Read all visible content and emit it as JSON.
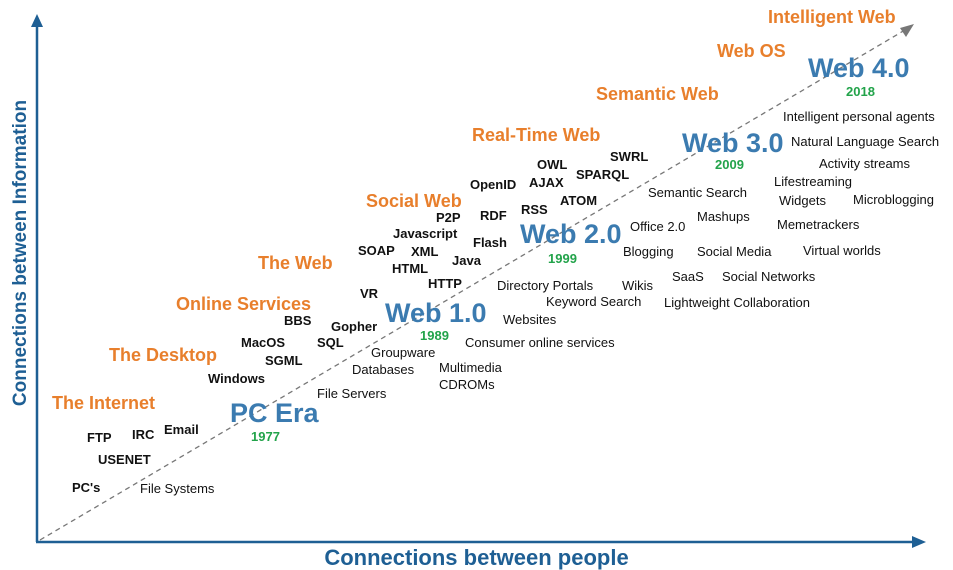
{
  "axes": {
    "x_label": "Connections between people",
    "y_label": "Connections between Information"
  },
  "eras": [
    {
      "name": "PC Era",
      "year": "1977"
    },
    {
      "name": "Web 1.0",
      "year": "1989"
    },
    {
      "name": "Web 2.0",
      "year": "1999"
    },
    {
      "name": "Web 3.0",
      "year": "2009"
    },
    {
      "name": "Web 4.0",
      "year": "2018"
    }
  ],
  "stages": [
    "The Internet",
    "The Desktop",
    "Online Services",
    "The Web",
    "Social Web",
    "Real-Time Web",
    "Semantic Web",
    "Web OS",
    "Intelligent Web"
  ],
  "technologies": [
    "PC's",
    "USENET",
    "FTP",
    "IRC",
    "Email",
    "Windows",
    "SGML",
    "MacOS",
    "SQL",
    "BBS",
    "Gopher",
    "VR",
    "HTML",
    "SOAP",
    "XML",
    "HTTP",
    "Java",
    "Javascript",
    "P2P",
    "Flash",
    "RDF",
    "RSS",
    "OpenID",
    "AJAX",
    "OWL",
    "ATOM",
    "SPARQL",
    "SWRL"
  ],
  "services": [
    "File Systems",
    "File Servers",
    "Databases",
    "Groupware",
    "Multimedia",
    "CDROMs",
    "Consumer online services",
    "Websites",
    "Keyword Search",
    "Directory Portals",
    "Wikis",
    "Blogging",
    "SaaS",
    "Office 2.0",
    "Mashups",
    "Social Media",
    "Social Networks",
    "Lightweight Collaboration",
    "Semantic Search",
    "Widgets",
    "Lifestreaming",
    "Memetrackers",
    "Virtual worlds",
    "Microblogging",
    "Activity streams",
    "Natural Language Search",
    "Intelligent personal agents"
  ]
}
